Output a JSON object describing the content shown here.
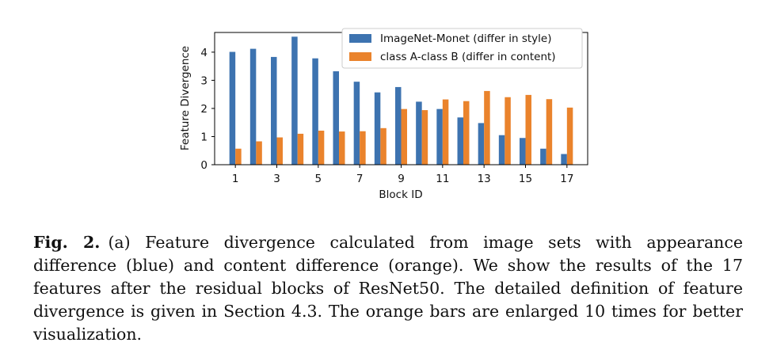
{
  "chart_data": {
    "type": "bar",
    "categories": [
      "1",
      "2",
      "3",
      "4",
      "5",
      "6",
      "7",
      "8",
      "9",
      "10",
      "11",
      "12",
      "13",
      "14",
      "15",
      "16",
      "17"
    ],
    "x_tick_labels": [
      "1",
      "3",
      "5",
      "7",
      "9",
      "11",
      "13",
      "15",
      "17"
    ],
    "xlabel": "Block ID",
    "ylabel": "Feature Divergence",
    "y_ticks": [
      "0",
      "1",
      "2",
      "3",
      "4"
    ],
    "ylim": [
      0,
      4.7
    ],
    "legend_placement": "top-right",
    "grid": false,
    "series": [
      {
        "name": "ImageNet-Monet (differ in style)",
        "color": "#3d73b0",
        "values": [
          4.01,
          4.12,
          3.83,
          4.55,
          3.78,
          3.32,
          2.95,
          2.57,
          2.76,
          2.24,
          1.98,
          1.68,
          1.48,
          1.05,
          0.95,
          0.57,
          0.38
        ]
      },
      {
        "name": "class A-class B (differ in content)",
        "color": "#ea832c",
        "values": [
          0.57,
          0.83,
          0.97,
          1.1,
          1.21,
          1.18,
          1.19,
          1.3,
          1.98,
          1.94,
          2.32,
          2.26,
          2.62,
          2.4,
          2.48,
          2.33,
          2.03
        ]
      }
    ]
  },
  "caption": {
    "label": "Fig. 2.",
    "text": "(a) Feature divergence calculated from image sets with appearance difference (blue) and content difference (orange). We show the results of the 17 features after the residual blocks of ResNet50. The detailed definition of feature divergence is given in Section 4.3. The orange bars are enlarged 10 times for better visualization."
  }
}
